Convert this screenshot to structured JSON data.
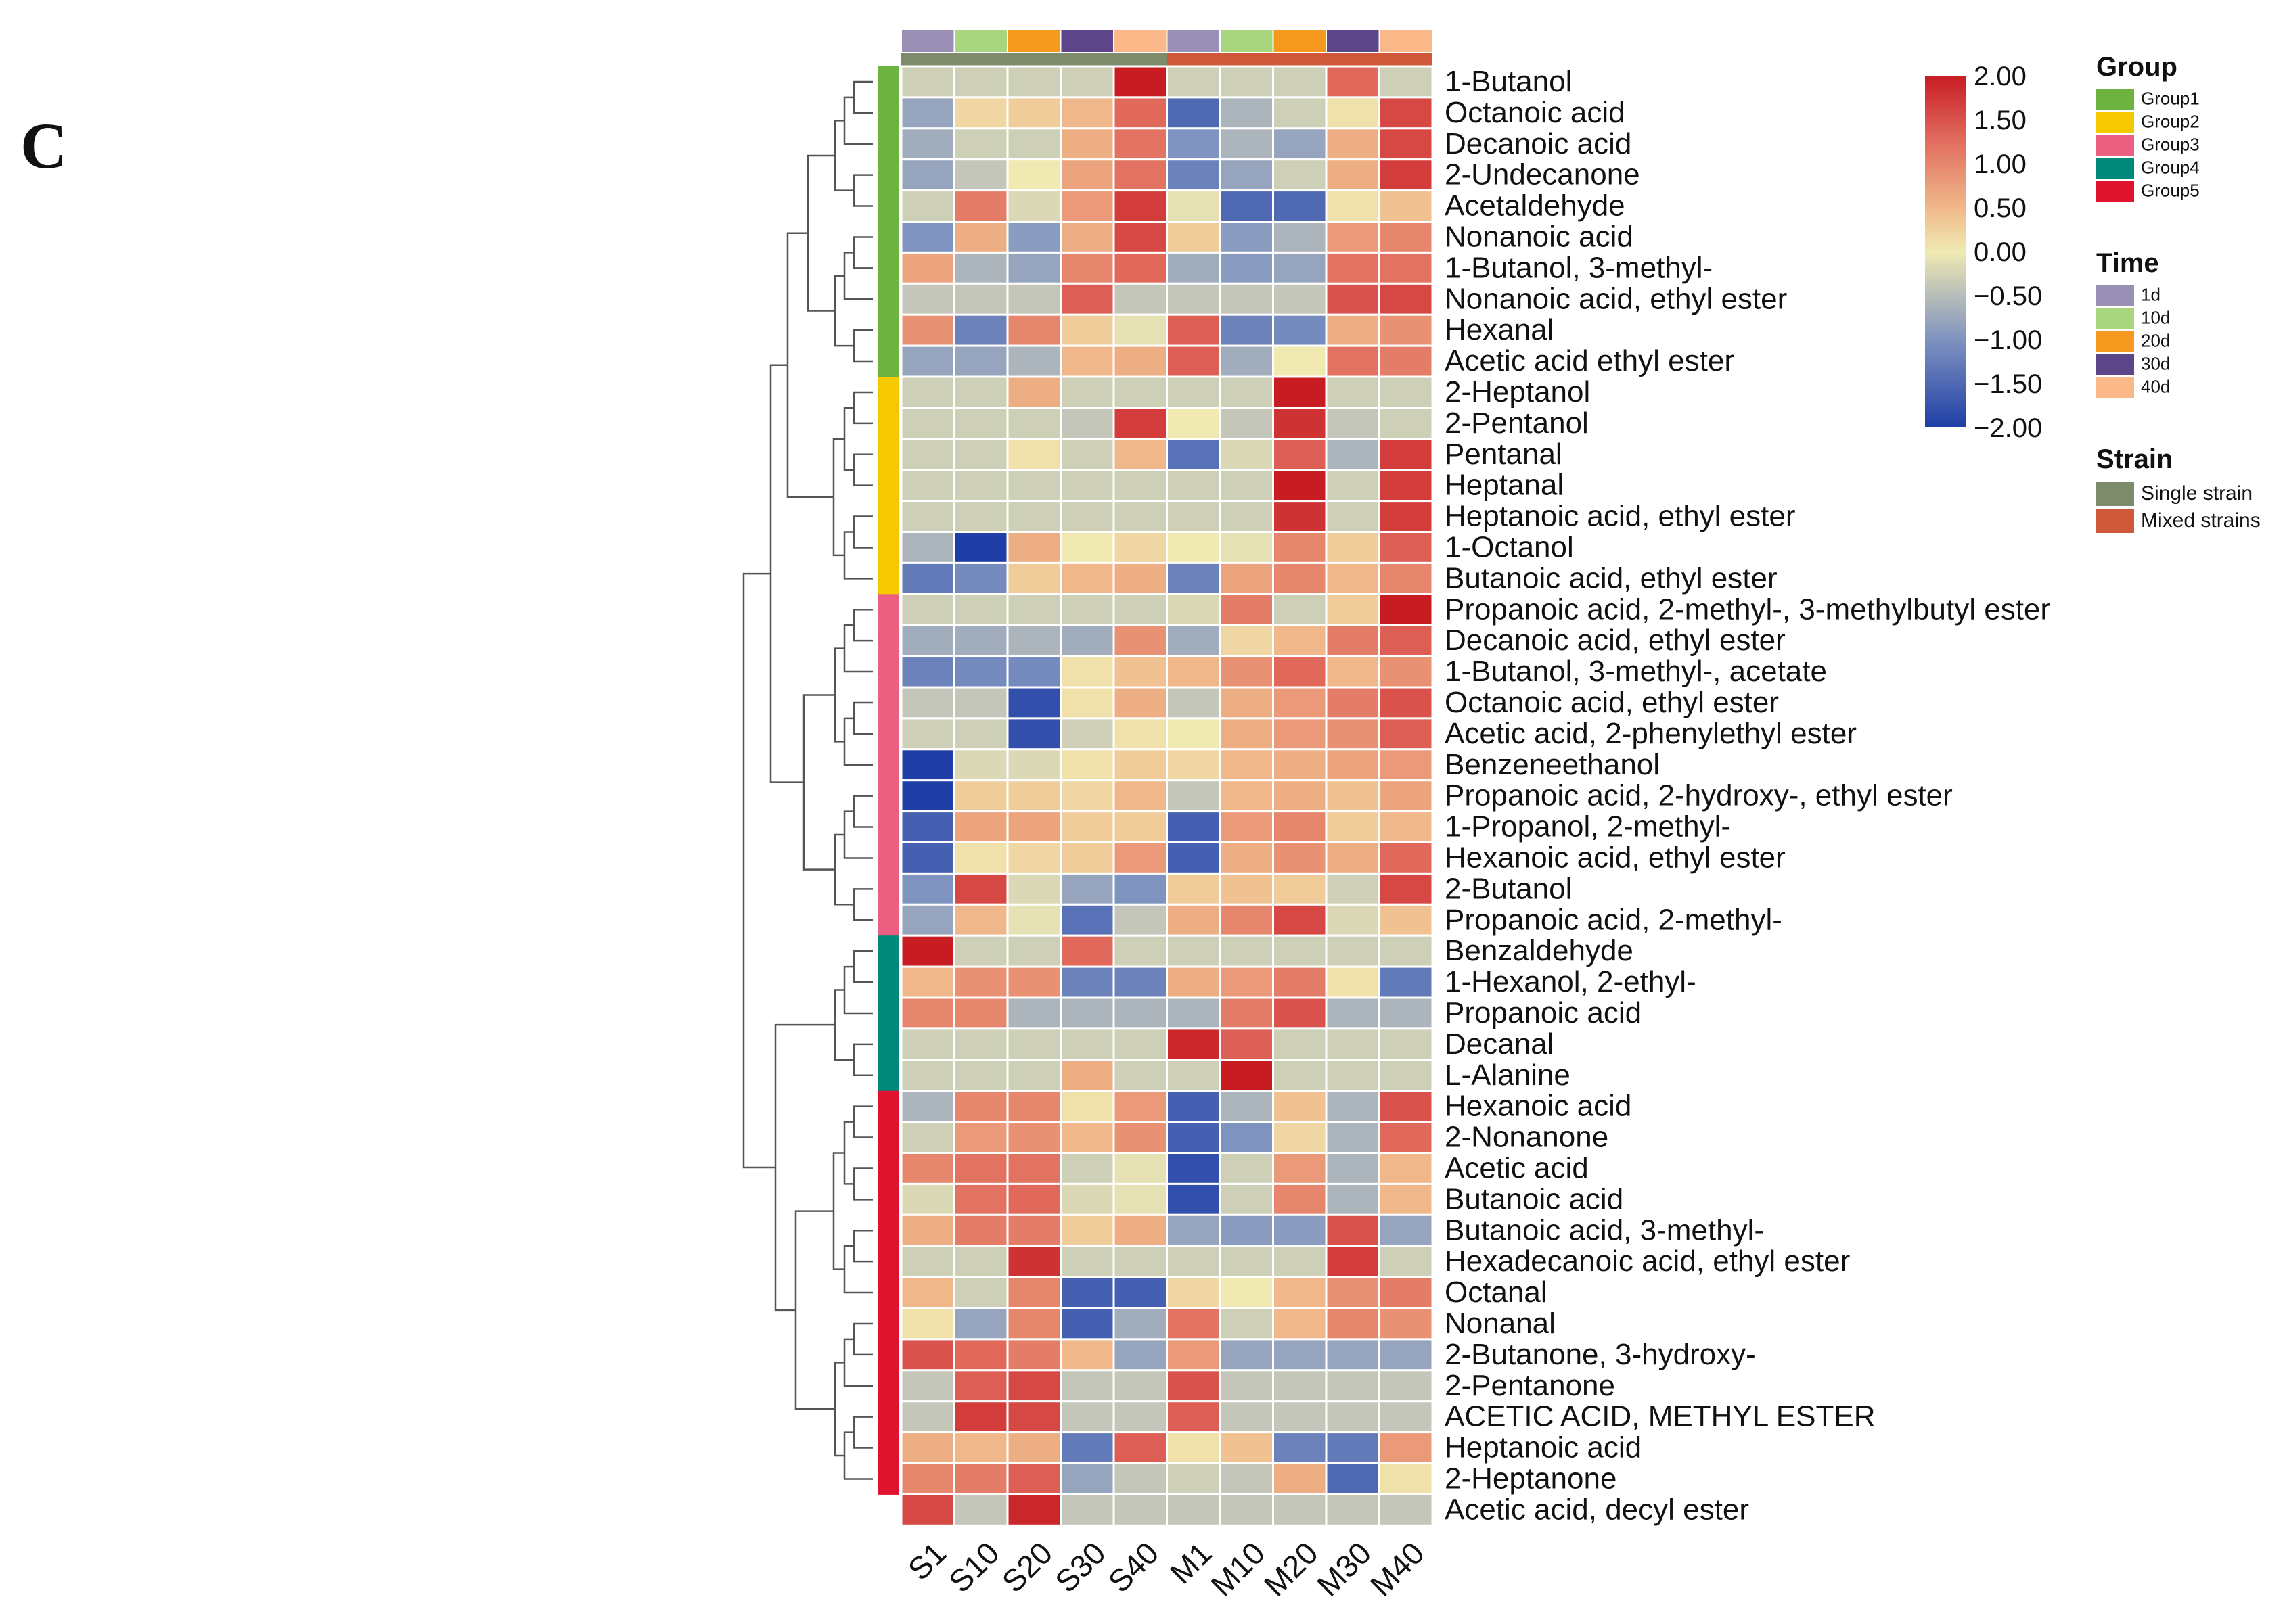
{
  "panel_label": "C",
  "chart_data": {
    "type": "heatmap",
    "columns": [
      "S1",
      "S10",
      "S20",
      "S30",
      "S40",
      "M1",
      "M10",
      "M20",
      "M30",
      "M40"
    ],
    "column_time": [
      "1d",
      "10d",
      "20d",
      "30d",
      "40d",
      "1d",
      "10d",
      "20d",
      "30d",
      "40d"
    ],
    "column_strain": [
      "Single strain",
      "Single strain",
      "Single strain",
      "Single strain",
      "Single strain",
      "Mixed strains",
      "Mixed strains",
      "Mixed strains",
      "Mixed strains",
      "Mixed strains"
    ],
    "row_group": [
      "Group1",
      "Group1",
      "Group1",
      "Group1",
      "Group1",
      "Group1",
      "Group1",
      "Group1",
      "Group1",
      "Group1",
      "Group2",
      "Group2",
      "Group2",
      "Group2",
      "Group2",
      "Group2",
      "Group2",
      "Group3",
      "Group3",
      "Group3",
      "Group3",
      "Group3",
      "Group3",
      "Group3",
      "Group3",
      "Group3",
      "Group3",
      "Group3",
      "Group4",
      "Group4",
      "Group4",
      "Group4",
      "Group4",
      "Group5",
      "Group5",
      "Group5",
      "Group5",
      "Group5",
      "Group5",
      "Group5",
      "Group5",
      "Group5",
      "Group5",
      "Group5",
      "Group5",
      "Group5"
    ],
    "rows": [
      "1-Butanol",
      "Octanoic acid",
      "Decanoic acid",
      "2-Undecanone",
      "Acetaldehyde",
      "Nonanoic acid",
      "1-Butanol, 3-methyl-",
      "Nonanoic acid, ethyl ester",
      "Hexanal",
      "Acetic acid ethyl ester",
      "2-Heptanol",
      "2-Pentanol",
      "Pentanal",
      "Heptanal",
      "Heptanoic acid, ethyl ester",
      "1-Octanol",
      "Butanoic acid, ethyl ester",
      "Propanoic acid, 2-methyl-, 3-methylbutyl ester",
      "Decanoic acid, ethyl ester",
      "1-Butanol, 3-methyl-, acetate",
      "Octanoic acid, ethyl ester",
      "Acetic acid, 2-phenylethyl ester",
      "Benzeneethanol",
      "Propanoic acid, 2-hydroxy-, ethyl ester",
      "1-Propanol, 2-methyl-",
      "Hexanoic acid, ethyl ester",
      "2-Butanol",
      "Propanoic acid, 2-methyl-",
      "Benzaldehyde",
      "1-Hexanol, 2-ethyl-",
      "Propanoic acid",
      "Decanal",
      "L-Alanine",
      "Hexanoic acid",
      "2-Nonanone",
      "Acetic acid",
      "Butanoic acid",
      "Butanoic acid, 3-methyl-",
      "Hexadecanoic acid, ethyl ester",
      "Octanal",
      "Nonanal",
      "2-Butanone, 3-hydroxy-",
      "2-Pentanone",
      "ACETIC ACID, METHYL ESTER",
      "Heptanoic acid",
      "2-Heptanone",
      "Acetic acid, decyl ester"
    ],
    "values": [
      [
        -0.3,
        -0.3,
        -0.3,
        -0.3,
        2.0,
        -0.3,
        -0.3,
        -0.3,
        1.3,
        -0.3
      ],
      [
        -0.8,
        0.2,
        0.3,
        0.5,
        1.3,
        -1.5,
        -0.6,
        -0.3,
        0.1,
        1.6
      ],
      [
        -0.7,
        -0.3,
        -0.3,
        0.6,
        1.2,
        -1.0,
        -0.6,
        -0.8,
        0.6,
        1.6
      ],
      [
        -0.8,
        -0.4,
        0.0,
        0.7,
        1.2,
        -1.2,
        -0.8,
        -0.3,
        0.6,
        1.7
      ],
      [
        -0.3,
        1.1,
        -0.2,
        0.8,
        1.7,
        -0.1,
        -1.5,
        -1.5,
        0.1,
        0.4
      ],
      [
        -1.0,
        0.6,
        -0.9,
        0.6,
        1.6,
        0.3,
        -0.9,
        -0.6,
        0.8,
        1.0
      ],
      [
        0.7,
        -0.6,
        -0.8,
        1.0,
        1.3,
        -0.7,
        -0.9,
        -0.8,
        1.2,
        1.2
      ],
      [
        -0.4,
        -0.4,
        -0.4,
        1.4,
        -0.4,
        -0.4,
        -0.4,
        -0.4,
        1.5,
        1.6
      ],
      [
        0.9,
        -1.2,
        1.0,
        0.3,
        -0.1,
        1.4,
        -1.2,
        -1.1,
        0.6,
        0.9
      ],
      [
        -0.8,
        -0.8,
        -0.6,
        0.5,
        0.6,
        1.4,
        -0.7,
        0.0,
        1.2,
        1.1
      ],
      [
        -0.3,
        -0.3,
        0.6,
        -0.3,
        -0.3,
        -0.3,
        -0.3,
        2.0,
        -0.3,
        -0.3
      ],
      [
        -0.3,
        -0.3,
        -0.3,
        -0.4,
        1.7,
        0.0,
        -0.4,
        1.8,
        -0.4,
        -0.3
      ],
      [
        -0.3,
        -0.3,
        0.1,
        -0.3,
        0.5,
        -1.4,
        -0.2,
        1.4,
        -0.6,
        1.7
      ],
      [
        -0.3,
        -0.3,
        -0.3,
        -0.3,
        -0.3,
        -0.3,
        -0.3,
        2.0,
        -0.3,
        1.7
      ],
      [
        -0.3,
        -0.3,
        -0.3,
        -0.3,
        -0.3,
        -0.3,
        -0.3,
        1.8,
        -0.3,
        1.7
      ],
      [
        -0.6,
        -2.0,
        0.6,
        0.0,
        0.2,
        0.0,
        -0.1,
        1.0,
        0.3,
        1.4
      ],
      [
        -1.3,
        -1.1,
        0.3,
        0.5,
        0.6,
        -1.2,
        0.7,
        1.0,
        0.5,
        1.0
      ],
      [
        -0.3,
        -0.3,
        -0.3,
        -0.3,
        -0.3,
        -0.2,
        1.1,
        -0.3,
        0.3,
        2.0
      ],
      [
        -0.7,
        -0.7,
        -0.6,
        -0.7,
        0.9,
        -0.7,
        0.2,
        0.5,
        1.1,
        1.4
      ],
      [
        -1.2,
        -1.1,
        -1.1,
        0.1,
        0.4,
        0.5,
        0.9,
        1.3,
        0.5,
        0.9
      ],
      [
        -0.4,
        -0.4,
        -1.8,
        0.1,
        0.6,
        -0.4,
        0.6,
        0.8,
        1.1,
        1.5
      ],
      [
        -0.3,
        -0.3,
        -1.8,
        -0.3,
        0.1,
        0.0,
        0.6,
        0.8,
        0.9,
        1.4
      ],
      [
        -2.0,
        -0.2,
        -0.2,
        0.1,
        0.3,
        0.2,
        0.5,
        0.6,
        0.7,
        0.8
      ],
      [
        -2.0,
        0.3,
        0.3,
        0.2,
        0.5,
        -0.4,
        0.5,
        0.6,
        0.4,
        0.7
      ],
      [
        -1.6,
        0.7,
        0.7,
        0.3,
        0.3,
        -1.6,
        0.8,
        1.0,
        0.3,
        0.5
      ],
      [
        -1.6,
        0.1,
        0.2,
        0.3,
        0.8,
        -1.6,
        0.6,
        0.9,
        0.6,
        1.3
      ],
      [
        -1.0,
        1.6,
        -0.2,
        -0.8,
        -1.0,
        0.3,
        0.4,
        0.3,
        -0.3,
        1.6
      ],
      [
        -0.8,
        0.5,
        -0.1,
        -1.4,
        -0.4,
        0.6,
        1.0,
        1.6,
        -0.2,
        0.4
      ],
      [
        2.0,
        -0.3,
        -0.3,
        1.3,
        -0.3,
        -0.3,
        -0.3,
        -0.3,
        -0.3,
        -0.3
      ],
      [
        0.5,
        0.9,
        0.9,
        -1.2,
        -1.2,
        0.6,
        0.8,
        1.1,
        0.1,
        -1.3
      ],
      [
        1.0,
        1.0,
        -0.6,
        -0.6,
        -0.6,
        -0.6,
        1.1,
        1.5,
        -0.6,
        -0.6
      ],
      [
        -0.3,
        -0.3,
        -0.3,
        -0.3,
        -0.3,
        1.9,
        1.4,
        -0.3,
        -0.3,
        -0.3
      ],
      [
        -0.3,
        -0.3,
        -0.3,
        0.6,
        -0.3,
        -0.3,
        2.0,
        -0.3,
        -0.3,
        -0.3
      ],
      [
        -0.6,
        1.0,
        1.0,
        0.1,
        0.8,
        -1.6,
        -0.6,
        0.4,
        -0.6,
        1.5
      ],
      [
        -0.3,
        0.8,
        0.9,
        0.5,
        0.9,
        -1.6,
        -1.0,
        0.2,
        -0.6,
        1.3
      ],
      [
        1.0,
        1.2,
        1.2,
        -0.3,
        -0.1,
        -1.8,
        -0.3,
        0.8,
        -0.6,
        0.5
      ],
      [
        -0.2,
        1.2,
        1.3,
        -0.2,
        -0.1,
        -1.8,
        -0.3,
        1.0,
        -0.6,
        0.5
      ],
      [
        0.6,
        1.1,
        1.1,
        0.3,
        0.6,
        -0.8,
        -0.9,
        -0.9,
        1.5,
        -0.8
      ],
      [
        -0.3,
        -0.3,
        1.8,
        -0.3,
        -0.3,
        -0.3,
        -0.3,
        -0.3,
        1.7,
        -0.3
      ],
      [
        0.5,
        -0.3,
        1.0,
        -1.6,
        -1.6,
        0.2,
        0.0,
        0.5,
        0.9,
        1.1
      ],
      [
        0.1,
        -0.8,
        1.0,
        -1.6,
        -0.7,
        1.2,
        -0.3,
        0.5,
        1.0,
        0.9
      ],
      [
        1.5,
        1.3,
        1.1,
        0.5,
        -0.8,
        0.8,
        -0.8,
        -0.8,
        -0.8,
        -0.8
      ],
      [
        -0.4,
        1.4,
        1.6,
        -0.4,
        -0.4,
        1.5,
        -0.4,
        -0.4,
        -0.4,
        -0.4
      ],
      [
        -0.4,
        1.7,
        1.6,
        -0.4,
        -0.4,
        1.4,
        -0.4,
        -0.4,
        -0.4,
        -0.4
      ],
      [
        0.6,
        0.5,
        0.6,
        -1.3,
        1.4,
        0.1,
        0.4,
        -1.2,
        -1.3,
        0.8
      ],
      [
        1.0,
        1.1,
        1.4,
        -0.8,
        -0.4,
        -0.3,
        -0.4,
        0.6,
        -1.5,
        0.1
      ],
      [
        1.6,
        -0.4,
        1.9,
        -0.4,
        -0.4,
        -0.4,
        -0.4,
        -0.4,
        -0.4,
        -0.4
      ]
    ],
    "scale": {
      "min": -2.0,
      "max": 2.0,
      "ticks": [
        "2.00",
        "1.50",
        "1.00",
        "0.50",
        "0.00",
        "−0.50",
        "−1.00",
        "−1.50",
        "−2.00"
      ]
    },
    "legends": {
      "group": {
        "title": "Group",
        "items": [
          "Group1",
          "Group2",
          "Group3",
          "Group4",
          "Group5"
        ],
        "colors": [
          "#6db33f",
          "#f5c800",
          "#eb5f80",
          "#00887a",
          "#e0132e"
        ]
      },
      "time": {
        "title": "Time",
        "items": [
          "1d",
          "10d",
          "20d",
          "30d",
          "40d"
        ],
        "colors": [
          "#9a8fb5",
          "#a8d67e",
          "#f59a1f",
          "#5c4689",
          "#fbb98a"
        ]
      },
      "strain": {
        "title": "Strain",
        "items": [
          "Single strain",
          "Mixed strains"
        ],
        "colors": [
          "#7d8a6c",
          "#d0583a"
        ]
      }
    },
    "colors": {
      "low": "#1f3ea6",
      "mid": "#f0eab2",
      "high": "#c81c23"
    }
  }
}
